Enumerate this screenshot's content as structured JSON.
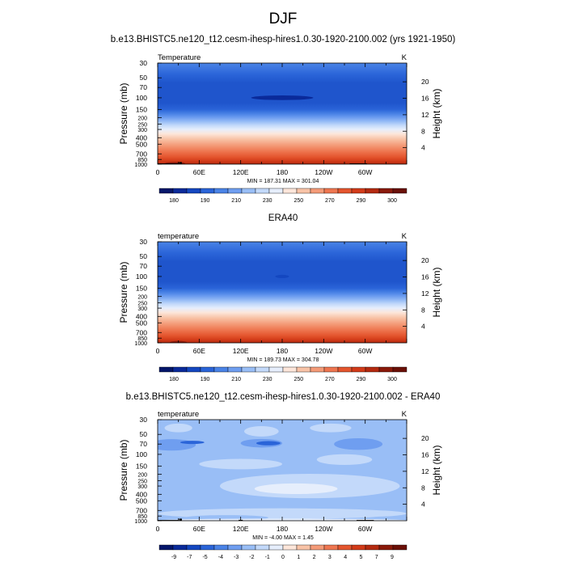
{
  "page_title": "DJF",
  "chart_data": [
    {
      "type": "heatmap",
      "title": "b.e13.BHISTC5.ne120_t12.cesm-ihesp-hires1.0.30-1920-2100.002 (yrs 1921-1950)",
      "left_label": "Temperature",
      "right_label": "K",
      "ylabel": "Pressure (mb)",
      "ylabel_right": "Height (km)",
      "xticks": [
        "0",
        "60E",
        "120E",
        "180",
        "120W",
        "60W"
      ],
      "pressure_ticks": [
        "30",
        "50",
        "70",
        "100",
        "150",
        "200",
        "250",
        "300",
        "400",
        "500",
        "700",
        "850",
        "1000"
      ],
      "height_ticks": [
        "20",
        "16",
        "12",
        "8",
        "4"
      ],
      "min_max": "MIN = 187.31  MAX = 301.04",
      "colorbar": {
        "labels": [
          "180",
          "190",
          "210",
          "230",
          "250",
          "270",
          "290",
          "300"
        ],
        "colors": [
          "#05166a",
          "#0a2a9a",
          "#1447c0",
          "#2a64d8",
          "#4a83e6",
          "#6f9ef0",
          "#99bef6",
          "#c3d9fa",
          "#e6eefc",
          "#fde6da",
          "#f8c3a7",
          "#f49b78",
          "#ee7650",
          "#e4552e",
          "#d23b19",
          "#b42a10",
          "#8a1a0a",
          "#6a1007"
        ]
      },
      "profile": [
        {
          "p": 30,
          "color": "#4a83e6"
        },
        {
          "p": 45,
          "color": "#2a64d8"
        },
        {
          "p": 60,
          "color": "#1f55cc"
        },
        {
          "p": 120,
          "color": "#1f55cc"
        },
        {
          "p": 150,
          "color": "#2a64d8"
        },
        {
          "p": 175,
          "color": "#4a83e6"
        },
        {
          "p": 200,
          "color": "#6f9ef0"
        },
        {
          "p": 230,
          "color": "#99bef6"
        },
        {
          "p": 260,
          "color": "#c3d9fa"
        },
        {
          "p": 300,
          "color": "#e6eefc"
        },
        {
          "p": 350,
          "color": "#fde6da"
        },
        {
          "p": 420,
          "color": "#f8c3a7"
        },
        {
          "p": 520,
          "color": "#f49b78"
        },
        {
          "p": 640,
          "color": "#ee7650"
        },
        {
          "p": 780,
          "color": "#e4552e"
        },
        {
          "p": 900,
          "color": "#d23b19"
        },
        {
          "p": 1000,
          "color": "#b42a10"
        }
      ],
      "features": [
        {
          "lon": 180,
          "p": 100,
          "lon_span": 90,
          "p_span": 8,
          "color": "#0a2a9a"
        },
        {
          "lon": 25,
          "p": 985,
          "lon_span": 30,
          "p_span": 20,
          "color": "#8a1a0a"
        }
      ],
      "topography": [
        {
          "lon": 15,
          "width": 30,
          "p_top": 975
        },
        {
          "lon": 33,
          "width": 4,
          "p_top": 930
        },
        {
          "lon": 290,
          "width": 25,
          "p_top": 975
        }
      ]
    },
    {
      "type": "heatmap",
      "title": "ERA40",
      "left_label": "temperature",
      "right_label": "K",
      "ylabel": "Pressure (mb)",
      "ylabel_right": "Height (km)",
      "xticks": [
        "0",
        "60E",
        "120E",
        "180",
        "120W",
        "60W"
      ],
      "pressure_ticks": [
        "30",
        "50",
        "70",
        "100",
        "150",
        "200",
        "250",
        "300",
        "400",
        "500",
        "700",
        "850",
        "1000"
      ],
      "height_ticks": [
        "20",
        "16",
        "12",
        "8",
        "4"
      ],
      "min_max": "MIN = 189.73  MAX = 304.78",
      "colorbar": {
        "labels": [
          "180",
          "190",
          "210",
          "230",
          "250",
          "270",
          "290",
          "300"
        ],
        "colors": [
          "#05166a",
          "#0a2a9a",
          "#1447c0",
          "#2a64d8",
          "#4a83e6",
          "#6f9ef0",
          "#99bef6",
          "#c3d9fa",
          "#e6eefc",
          "#fde6da",
          "#f8c3a7",
          "#f49b78",
          "#ee7650",
          "#e4552e",
          "#d23b19",
          "#b42a10",
          "#8a1a0a",
          "#6a1007"
        ]
      },
      "profile": [
        {
          "p": 30,
          "color": "#4a83e6"
        },
        {
          "p": 45,
          "color": "#2a64d8"
        },
        {
          "p": 60,
          "color": "#1f55cc"
        },
        {
          "p": 120,
          "color": "#1f55cc"
        },
        {
          "p": 150,
          "color": "#2a64d8"
        },
        {
          "p": 175,
          "color": "#4a83e6"
        },
        {
          "p": 200,
          "color": "#6f9ef0"
        },
        {
          "p": 230,
          "color": "#99bef6"
        },
        {
          "p": 260,
          "color": "#c3d9fa"
        },
        {
          "p": 300,
          "color": "#e6eefc"
        },
        {
          "p": 350,
          "color": "#fde6da"
        },
        {
          "p": 420,
          "color": "#f8c3a7"
        },
        {
          "p": 520,
          "color": "#f49b78"
        },
        {
          "p": 640,
          "color": "#ee7650"
        },
        {
          "p": 780,
          "color": "#e4552e"
        },
        {
          "p": 900,
          "color": "#d23b19"
        },
        {
          "p": 1000,
          "color": "#b42a10"
        }
      ],
      "features": [
        {
          "lon": 180,
          "p": 100,
          "lon_span": 20,
          "p_span": 2,
          "color": "#1447c0"
        },
        {
          "lon": 30,
          "p": 990,
          "lon_span": 25,
          "p_span": 15,
          "color": "#8a1a0a"
        }
      ],
      "topography": []
    },
    {
      "type": "heatmap",
      "title": "b.e13.BHISTC5.ne120_t12.cesm-ihesp-hires1.0.30-1920-2100.002 - ERA40",
      "left_label": "temperature",
      "right_label": "K",
      "ylabel": "Pressure (mb)",
      "ylabel_right": "Height (km)",
      "xticks": [
        "0",
        "60E",
        "120E",
        "180",
        "120W",
        "60W"
      ],
      "pressure_ticks": [
        "30",
        "50",
        "70",
        "100",
        "150",
        "200",
        "250",
        "300",
        "400",
        "500",
        "700",
        "850",
        "1000"
      ],
      "height_ticks": [
        "20",
        "16",
        "12",
        "8",
        "4"
      ],
      "min_max": "MIN = -4.00  MAX =  1.45",
      "colorbar": {
        "labels": [
          "-9",
          "-7",
          "-5",
          "-4",
          "-3",
          "-2",
          "-1",
          "0",
          "1",
          "2",
          "3",
          "4",
          "5",
          "7",
          "9"
        ],
        "colors": [
          "#05166a",
          "#0a2a9a",
          "#1447c0",
          "#2a64d8",
          "#4a83e6",
          "#6f9ef0",
          "#99bef6",
          "#c3d9fa",
          "#e6eefc",
          "#fde6da",
          "#f8c3a7",
          "#f49b78",
          "#ee7650",
          "#e4552e",
          "#d23b19",
          "#b42a10",
          "#8a1a0a",
          "#6a1007"
        ]
      },
      "profile": [
        {
          "p": 30,
          "color": "#99bef6"
        },
        {
          "p": 1000,
          "color": "#99bef6"
        }
      ],
      "features": [
        {
          "lon": 30,
          "p": 40,
          "lon_span": 40,
          "p_span": 6,
          "color": "#c3d9fa"
        },
        {
          "lon": 150,
          "p": 45,
          "lon_span": 50,
          "p_span": 8,
          "color": "#c3d9fa"
        },
        {
          "lon": 250,
          "p": 40,
          "lon_span": 60,
          "p_span": 6,
          "color": "#c3d9fa"
        },
        {
          "lon": 20,
          "p": 72,
          "lon_span": 70,
          "p_span": 14,
          "color": "#6f9ef0"
        },
        {
          "lon": 50,
          "p": 66,
          "lon_span": 35,
          "p_span": 3,
          "color": "#2a64d8"
        },
        {
          "lon": 150,
          "p": 68,
          "lon_span": 60,
          "p_span": 10,
          "color": "#6f9ef0"
        },
        {
          "lon": 160,
          "p": 68,
          "lon_span": 35,
          "p_span": 5,
          "color": "#2a64d8"
        },
        {
          "lon": 290,
          "p": 70,
          "lon_span": 70,
          "p_span": 14,
          "color": "#6f9ef0"
        },
        {
          "lon": 270,
          "p": 120,
          "lon_span": 80,
          "p_span": 22,
          "color": "#c3d9fa"
        },
        {
          "lon": 120,
          "p": 140,
          "lon_span": 120,
          "p_span": 25,
          "color": "#c3d9fa"
        },
        {
          "lon": 220,
          "p": 300,
          "lon_span": 260,
          "p_span": 120,
          "color": "#c3d9fa"
        },
        {
          "lon": 200,
          "p": 330,
          "lon_span": 120,
          "p_span": 60,
          "color": "#e6eefc"
        },
        {
          "lon": 180,
          "p": 780,
          "lon_span": 360,
          "p_span": 140,
          "color": "#c3d9fa"
        },
        {
          "lon": 100,
          "p": 900,
          "lon_span": 120,
          "p_span": 80,
          "color": "#99bef6"
        },
        {
          "lon": 330,
          "p": 920,
          "lon_span": 50,
          "p_span": 60,
          "color": "#99bef6"
        },
        {
          "lon": 180,
          "p": 985,
          "lon_span": 360,
          "p_span": 30,
          "color": "#e6eefc"
        }
      ],
      "topography": [
        {
          "lon": 15,
          "width": 30,
          "p_top": 975
        },
        {
          "lon": 33,
          "width": 4,
          "p_top": 930
        },
        {
          "lon": 120,
          "width": 6,
          "p_top": 970
        },
        {
          "lon": 300,
          "width": 25,
          "p_top": 975
        }
      ]
    }
  ]
}
